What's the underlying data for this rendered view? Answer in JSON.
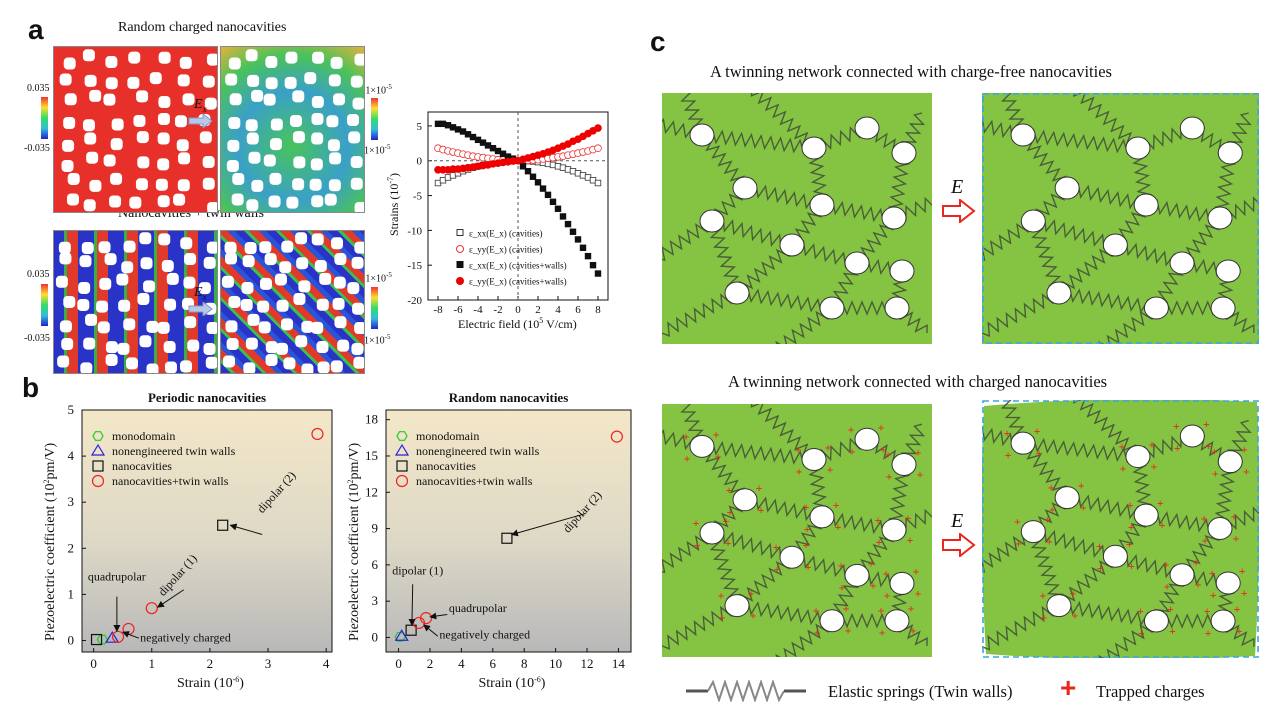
{
  "panel_labels": {
    "a": "a",
    "b": "b",
    "c": "c"
  },
  "panel_a": {
    "title_top": "Random charged nanocavities",
    "title_bottom": "Nanocavities + twin walls",
    "field_label": "E",
    "field_sub": "x",
    "cb_top_left_max": "0.035",
    "cb_top_left_min": "-0.035",
    "cb_top_right_max": "-1×10",
    "cb_top_right_min": "1×10",
    "cb_exp": "-5",
    "cb_bottom_left_max": "0.035",
    "cb_bottom_left_min": "-0.035",
    "cb_bottom_right_max": "-1×10",
    "cb_bottom_right_min": "1×10"
  },
  "panel_c": {
    "title_top": "A twinning network connected with charge-free nanocavities",
    "title_bottom": "A twinning network connected with charged nanocavities",
    "field_label": "E",
    "legend_spring": "Elastic springs (Twin walls)",
    "legend_charge": "Trapped charges",
    "colors": {
      "green": "#85c442",
      "spring": "#4a5e3a",
      "dash": "#3aa6e0",
      "charge": "#e8281e"
    }
  },
  "chart_data": [
    {
      "type": "scatter",
      "title": "",
      "xlabel": "Electric field (10",
      "xlabel_exp": "5",
      "xlabel_tail": " V/cm)",
      "ylabel": "Strains (10",
      "ylabel_exp": "-7",
      "ylabel_tail": ")",
      "xlim": [
        -9,
        9
      ],
      "ylim": [
        -20,
        7
      ],
      "x_ticks": [
        -8,
        -6,
        -4,
        -2,
        0,
        2,
        4,
        6,
        8
      ],
      "y_ticks": [
        5,
        0,
        -5,
        -10,
        -15,
        -20
      ],
      "x": [
        -8,
        -7.5,
        -7,
        -6.5,
        -6,
        -5.5,
        -5,
        -4.5,
        -4,
        -3.5,
        -3,
        -2.5,
        -2,
        -1.5,
        -1,
        -0.5,
        0,
        0.5,
        1,
        1.5,
        2,
        2.5,
        3,
        3.5,
        4,
        4.5,
        5,
        5.5,
        6,
        6.5,
        7,
        7.5,
        8
      ],
      "series": [
        {
          "name": "ε_xx(E_x) (cavities)",
          "marker": "open-square",
          "values": [
            -3.2,
            -2.8,
            -2.4,
            -2.1,
            -1.8,
            -1.5,
            -1.25,
            -1.0,
            -0.8,
            -0.6,
            -0.45,
            -0.3,
            -0.2,
            -0.1,
            -0.05,
            -0.01,
            0,
            -0.01,
            -0.05,
            -0.1,
            -0.2,
            -0.3,
            -0.45,
            -0.6,
            -0.8,
            -1.0,
            -1.25,
            -1.5,
            -1.8,
            -2.1,
            -2.4,
            -2.8,
            -3.2
          ]
        },
        {
          "name": "ε_yy(E_x) (cavities)",
          "marker": "open-circle",
          "values": [
            1.8,
            1.6,
            1.4,
            1.25,
            1.1,
            0.95,
            0.8,
            0.65,
            0.55,
            0.45,
            0.35,
            0.25,
            0.15,
            0.1,
            0.05,
            0.01,
            0,
            0.01,
            0.05,
            0.1,
            0.15,
            0.25,
            0.35,
            0.45,
            0.55,
            0.65,
            0.8,
            0.95,
            1.1,
            1.25,
            1.4,
            1.6,
            1.8
          ]
        },
        {
          "name": "ε_xx(E_x) (cavities+walls)",
          "marker": "filled-square",
          "values": [
            5.3,
            5.3,
            5.1,
            4.8,
            4.5,
            4.2,
            3.8,
            3.4,
            3.0,
            2.6,
            2.2,
            1.8,
            1.4,
            1.0,
            0.6,
            0.3,
            0,
            -0.8,
            -1.5,
            -2.3,
            -3.1,
            -4.0,
            -4.9,
            -5.9,
            -6.9,
            -8.0,
            -9.1,
            -10.2,
            -11.3,
            -12.5,
            -13.7,
            -15.0,
            -16.2
          ]
        },
        {
          "name": "ε_yy(E_x) (cavities+walls)",
          "marker": "filled-circle",
          "values": [
            -1.3,
            -1.3,
            -1.3,
            -1.2,
            -1.2,
            -1.1,
            -1.0,
            -0.9,
            -0.8,
            -0.7,
            -0.6,
            -0.45,
            -0.35,
            -0.25,
            -0.15,
            -0.05,
            0,
            0.2,
            0.4,
            0.6,
            0.8,
            1.0,
            1.25,
            1.5,
            1.8,
            2.1,
            2.4,
            2.8,
            3.1,
            3.5,
            3.9,
            4.3,
            4.7
          ]
        }
      ]
    },
    {
      "type": "scatter",
      "title": "Periodic nanocavities",
      "xlabel": "Strain (10",
      "xlabel_exp": "-6",
      "xlabel_tail": ")",
      "ylabel": "Piezoelectric coefficient (10",
      "ylabel_exp": "2",
      "ylabel_tail": "pm/V)",
      "xlim": [
        -0.2,
        4.1
      ],
      "ylim": [
        -0.25,
        5
      ],
      "x_ticks": [
        0,
        1,
        2,
        3,
        4
      ],
      "y_ticks": [
        0,
        1,
        2,
        3,
        4,
        5
      ],
      "series": [
        {
          "name": "monodomain",
          "marker": "hexagon",
          "color": "#22cc22",
          "points": [
            [
              0.15,
              0.02
            ]
          ]
        },
        {
          "name": "nonengineered twin walls",
          "marker": "triangle",
          "color": "#2222dd",
          "points": [
            [
              0.32,
              0.05
            ]
          ]
        },
        {
          "name": "nanocavities",
          "marker": "square",
          "color": "#111111",
          "points": [
            [
              0.05,
              0.02
            ],
            [
              2.22,
              2.5
            ]
          ]
        },
        {
          "name": "nanocavities+twin walls",
          "marker": "circle",
          "color": "#ee2222",
          "points": [
            [
              0.42,
              0.08
            ],
            [
              0.6,
              0.25
            ],
            [
              1.0,
              0.7
            ],
            [
              3.85,
              4.48
            ]
          ]
        }
      ],
      "annotations": [
        "quadrupolar",
        "negatively charged",
        "dipolar (1)",
        "dipolar (2)"
      ]
    },
    {
      "type": "scatter",
      "title": "Random nanocavities",
      "xlabel": "Strain (10",
      "xlabel_exp": "-6",
      "xlabel_tail": ")",
      "ylabel": "Piezoelectric coefficient (10",
      "ylabel_exp": "2",
      "ylabel_tail": "pm/V)",
      "xlim": [
        -0.8,
        14.8
      ],
      "ylim": [
        -1.2,
        18.8
      ],
      "x_ticks": [
        0,
        2,
        4,
        6,
        8,
        10,
        12,
        14
      ],
      "y_ticks": [
        0,
        3,
        6,
        9,
        12,
        15,
        18
      ],
      "series": [
        {
          "name": "monodomain",
          "marker": "hexagon",
          "color": "#22cc22",
          "points": [
            [
              0.1,
              0.05
            ]
          ]
        },
        {
          "name": "nonengineered twin walls",
          "marker": "triangle",
          "color": "#2222dd",
          "points": [
            [
              0.2,
              0.1
            ]
          ]
        },
        {
          "name": "nanocavities",
          "marker": "square",
          "color": "#111111",
          "points": [
            [
              0.8,
              0.6
            ],
            [
              6.9,
              8.2
            ]
          ]
        },
        {
          "name": "nanocavities+twin walls",
          "marker": "circle",
          "color": "#ee2222",
          "points": [
            [
              1.3,
              1.2
            ],
            [
              1.75,
              1.6
            ],
            [
              13.9,
              16.6
            ]
          ]
        }
      ],
      "annotations": [
        "dipolar (1)",
        "quadrupolar",
        "negatively charged",
        "dipolar (2)"
      ]
    }
  ]
}
